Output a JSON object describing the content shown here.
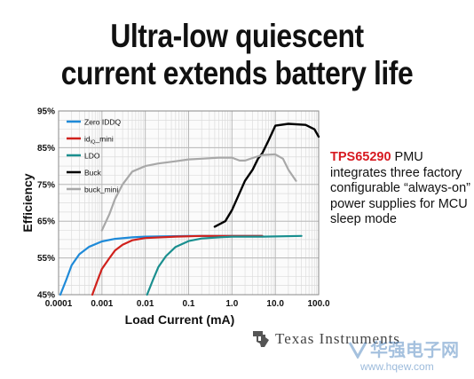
{
  "headline": {
    "line1": "Ultra-low quiescent",
    "line2": "current extends battery life"
  },
  "side_text": {
    "part": "TPS65290",
    "rest": " PMU integrates three factory configurable “always-on” power supplies for MCU sleep mode"
  },
  "logo": {
    "text": "Texas Instruments"
  },
  "watermark": {
    "chinese": "华强电子网",
    "url": "www.hqew.com"
  },
  "chart_data": {
    "type": "line",
    "title": "",
    "xlabel": "Load Current (mA)",
    "ylabel": "Efficiency",
    "xscale": "log",
    "xlim": [
      0.0001,
      100
    ],
    "ylim": [
      45,
      95
    ],
    "xticks": [
      {
        "value": 0.0001,
        "label": "0.0001"
      },
      {
        "value": 0.001,
        "label": "0.001"
      },
      {
        "value": 0.01,
        "label": "0.01"
      },
      {
        "value": 0.1,
        "label": "0.1"
      },
      {
        "value": 1,
        "label": "1.0"
      },
      {
        "value": 10,
        "label": "10.0"
      },
      {
        "value": 100,
        "label": "100.0"
      }
    ],
    "yticks": [
      {
        "value": 45,
        "label": "45%"
      },
      {
        "value": 55,
        "label": "55%"
      },
      {
        "value": 65,
        "label": "65%"
      },
      {
        "value": 75,
        "label": "75%"
      },
      {
        "value": 85,
        "label": "85%"
      },
      {
        "value": 95,
        "label": "95%"
      }
    ],
    "grid": true,
    "legend_position": "top-left",
    "series": [
      {
        "name": "Zero IDDQ",
        "color": "#1f8ad8",
        "points": [
          [
            0.00011,
            45
          ],
          [
            0.00015,
            49
          ],
          [
            0.0002,
            53
          ],
          [
            0.0003,
            56
          ],
          [
            0.0005,
            58
          ],
          [
            0.001,
            59.5
          ],
          [
            0.002,
            60.2
          ],
          [
            0.005,
            60.6
          ],
          [
            0.01,
            60.8
          ],
          [
            0.1,
            61
          ],
          [
            1,
            61
          ],
          [
            5,
            61
          ]
        ]
      },
      {
        "name": "idQ_mini",
        "label_main": "id",
        "label_sub": "IQ",
        "label_end": "_mini",
        "color": "#d0211c",
        "points": [
          [
            0.0006,
            45
          ],
          [
            0.0008,
            49
          ],
          [
            0.001,
            52
          ],
          [
            0.0015,
            55
          ],
          [
            0.002,
            57
          ],
          [
            0.003,
            58.6
          ],
          [
            0.005,
            59.8
          ],
          [
            0.01,
            60.4
          ],
          [
            0.05,
            60.8
          ],
          [
            0.2,
            61
          ],
          [
            1,
            61
          ],
          [
            5,
            61
          ]
        ]
      },
      {
        "name": "LDO",
        "color": "#1a8f8f",
        "points": [
          [
            0.011,
            45
          ],
          [
            0.015,
            49
          ],
          [
            0.02,
            52.5
          ],
          [
            0.03,
            55.5
          ],
          [
            0.05,
            58
          ],
          [
            0.1,
            59.6
          ],
          [
            0.2,
            60.3
          ],
          [
            0.5,
            60.6
          ],
          [
            1,
            60.8
          ],
          [
            5,
            60.8
          ],
          [
            40,
            61
          ]
        ]
      },
      {
        "name": "Buck",
        "color": "#000000",
        "points": [
          [
            0.4,
            63.5
          ],
          [
            0.7,
            65
          ],
          [
            1,
            68
          ],
          [
            2,
            76
          ],
          [
            3,
            79
          ],
          [
            4,
            82
          ],
          [
            5,
            83.5
          ],
          [
            7,
            87
          ],
          [
            10,
            91
          ],
          [
            20,
            91.5
          ],
          [
            50,
            91.2
          ],
          [
            80,
            90
          ],
          [
            100,
            88
          ]
        ]
      },
      {
        "name": "buck_mini",
        "color": "#a8a8a8",
        "points": [
          [
            0.001,
            62.5
          ],
          [
            0.0015,
            67
          ],
          [
            0.002,
            71
          ],
          [
            0.003,
            75
          ],
          [
            0.005,
            78.5
          ],
          [
            0.01,
            80
          ],
          [
            0.02,
            80.7
          ],
          [
            0.05,
            81.3
          ],
          [
            0.1,
            81.8
          ],
          [
            0.2,
            82
          ],
          [
            0.5,
            82.3
          ],
          [
            1,
            82.3
          ],
          [
            1.5,
            81.5
          ],
          [
            2,
            81.5
          ],
          [
            3,
            82.2
          ],
          [
            5,
            83
          ],
          [
            10,
            83.2
          ],
          [
            15,
            82
          ],
          [
            20,
            79
          ],
          [
            30,
            76
          ]
        ]
      }
    ]
  }
}
